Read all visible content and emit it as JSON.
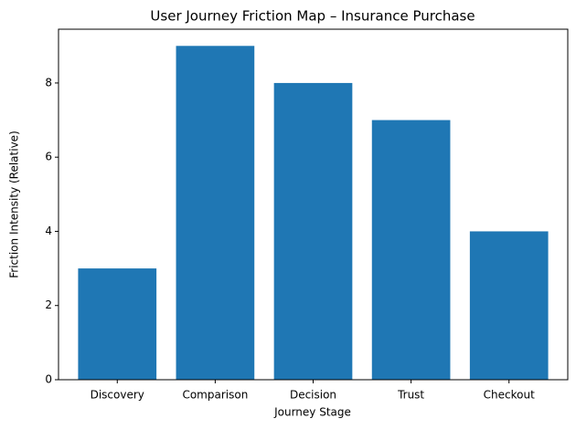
{
  "chart_data": {
    "type": "bar",
    "title": "User Journey Friction Map – Insurance Purchase",
    "x_label": "Journey Stage",
    "y_label": "Friction Intensity (Relative)",
    "categories": [
      "Discovery",
      "Comparison",
      "Decision",
      "Trust",
      "Checkout"
    ],
    "values": [
      3,
      9,
      8,
      7,
      4
    ],
    "color": "#1f77b4",
    "ylim": [
      0,
      9.45
    ],
    "yticks": [
      0,
      2,
      4,
      6,
      8
    ],
    "grid": false
  }
}
